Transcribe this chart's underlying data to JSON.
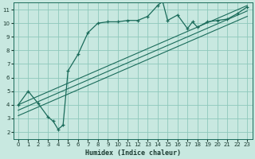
{
  "xlabel": "Humidex (Indice chaleur)",
  "bg_color": "#c8e8e0",
  "grid_color": "#8ec8bc",
  "line_color": "#1a6b5a",
  "xlim": [
    -0.5,
    23.5
  ],
  "ylim": [
    1.5,
    11.5
  ],
  "xticks": [
    0,
    1,
    2,
    3,
    4,
    5,
    6,
    7,
    8,
    9,
    10,
    11,
    12,
    13,
    14,
    15,
    16,
    17,
    18,
    19,
    20,
    21,
    22,
    23
  ],
  "yticks": [
    2,
    3,
    4,
    5,
    6,
    7,
    8,
    9,
    10,
    11
  ],
  "main_x": [
    0,
    1,
    2,
    3,
    3.5,
    4,
    4.5,
    5,
    6,
    7,
    8,
    9,
    10,
    11,
    12,
    13,
    14,
    14.5,
    15,
    16,
    17,
    17.5,
    18,
    19,
    20,
    21,
    22,
    23
  ],
  "main_y": [
    4.0,
    5.0,
    4.1,
    3.1,
    2.8,
    2.2,
    2.5,
    6.5,
    7.7,
    9.3,
    10.0,
    10.1,
    10.1,
    10.2,
    10.2,
    10.5,
    11.3,
    11.6,
    10.2,
    10.6,
    9.6,
    10.1,
    9.7,
    10.1,
    10.2,
    10.3,
    10.7,
    11.2
  ],
  "diag_lines": [
    {
      "x0": 0,
      "y0": 3.2,
      "x1": 23,
      "y1": 10.5
    },
    {
      "x0": 0,
      "y0": 3.6,
      "x1": 23,
      "y1": 10.9
    },
    {
      "x0": 0,
      "y0": 4.0,
      "x1": 23,
      "y1": 11.3
    }
  ]
}
